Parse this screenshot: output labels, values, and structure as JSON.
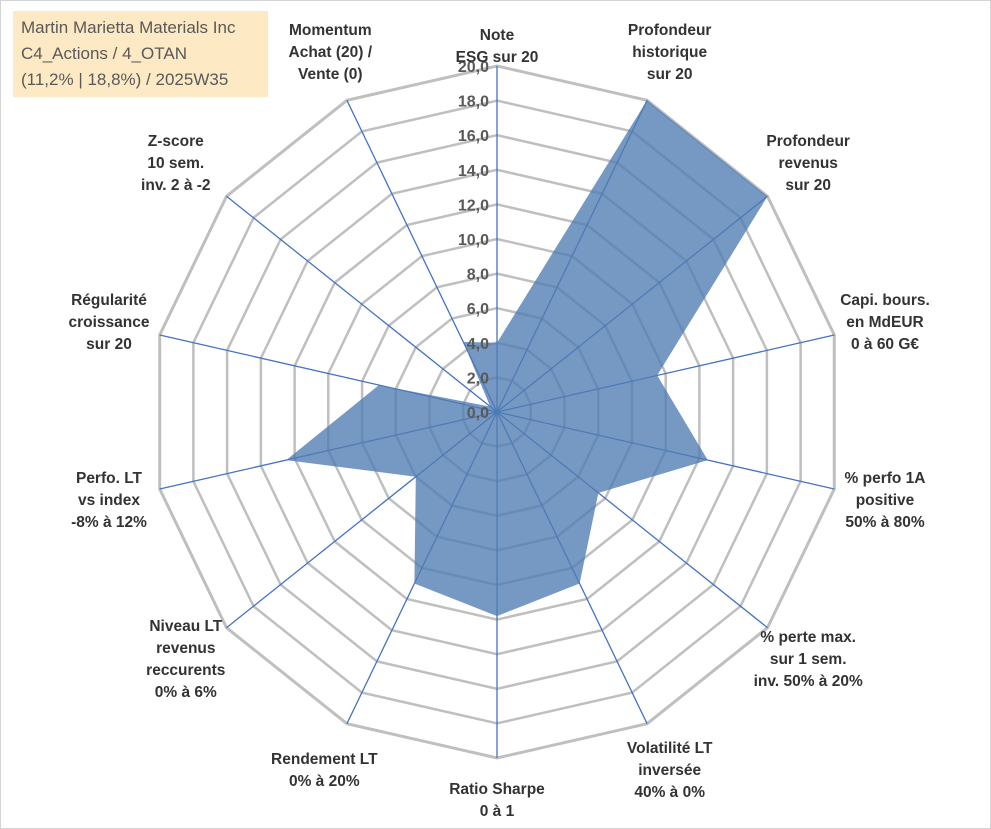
{
  "title": {
    "line1": "Martin Marietta Materials Inc",
    "line2": "C4_Actions / 4_OTAN",
    "line3": "(11,2% | 18,8%) / 2025W35"
  },
  "chart_data": {
    "type": "radar",
    "rlim": [
      0,
      20
    ],
    "ticks": [
      "0,0",
      "2,0",
      "4,0",
      "6,0",
      "8,0",
      "10,0",
      "12,0",
      "14,0",
      "16,0",
      "18,0",
      "20,0"
    ],
    "grid": true,
    "fill_color": "#4f7cb2",
    "axis_color": "#4472c4",
    "grid_color": "#bfbfbf",
    "axes": [
      {
        "label": [
          "Note",
          "ESG sur 20"
        ],
        "value": 4.0
      },
      {
        "label": [
          "Profondeur",
          "historique",
          "sur 20"
        ],
        "value": 20.0
      },
      {
        "label": [
          "Profondeur",
          "revenus",
          "sur 20"
        ],
        "value": 20.0
      },
      {
        "label": [
          "Capi. bours.",
          "en MdEUR",
          "0 à 60 G€"
        ],
        "value": 9.5
      },
      {
        "label": [
          "% perfo 1A",
          "positive",
          "50% à 80%"
        ],
        "value": 12.5
      },
      {
        "label": [
          "% perte max.",
          "sur 1 sem.",
          "inv. 50% à 20%"
        ],
        "value": 7.5
      },
      {
        "label": [
          "Volatilité LT",
          "inversée",
          "40% à 0%"
        ],
        "value": 11.0
      },
      {
        "label": [
          "Ratio Sharpe",
          "0 à 1"
        ],
        "value": 11.8
      },
      {
        "label": [
          "Rendement LT",
          "0% à 20%"
        ],
        "value": 11.0
      },
      {
        "label": [
          "Niveau LT",
          "revenus",
          "reccurents",
          "0% à 6%"
        ],
        "value": 6.0
      },
      {
        "label": [
          "Perfo. LT",
          "vs index",
          "-8% à 12%"
        ],
        "value": 12.5
      },
      {
        "label": [
          "Régularité",
          "croissance",
          "sur 20"
        ],
        "value": 7.0
      },
      {
        "label": [
          "Z-score",
          "10 sem.",
          "inv. 2 à -2"
        ],
        "value": 0.5
      },
      {
        "label": [
          "Momentum",
          "Achat (20) /",
          "Vente (0)"
        ],
        "value": 4.5
      }
    ]
  }
}
